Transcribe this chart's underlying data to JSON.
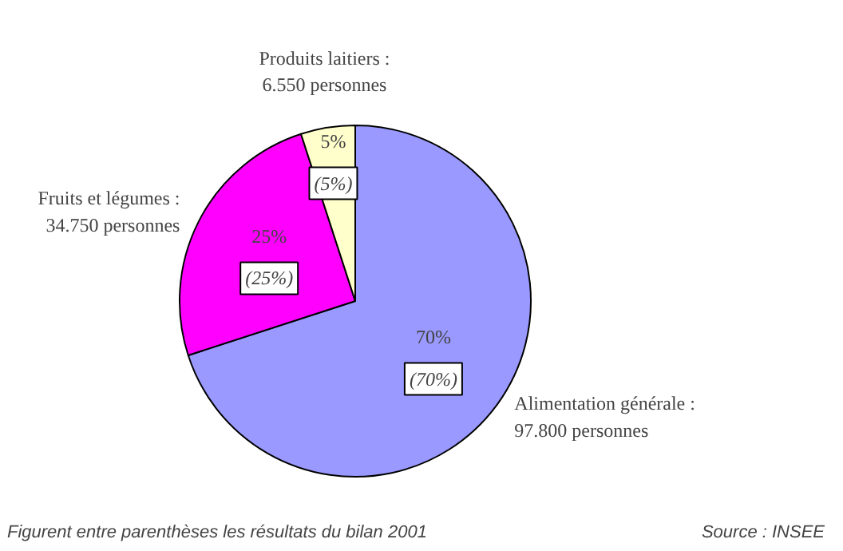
{
  "chart_data": {
    "type": "pie",
    "categories": [
      "Alimentation générale :\n97.800 personnes",
      "Fruits et légumes :\n34.750 personnes",
      "Produits laitiers :\n6.550 personnes"
    ],
    "values": [
      70,
      25,
      5
    ],
    "colors": [
      "#9999ff",
      "#ff00ff",
      "#ffffcc"
    ],
    "value_labels": [
      "70%\n(70%)",
      "25%\n(25%)",
      "5%\n(5%)"
    ],
    "annotations": [
      "Figurent entre parenthèses les résultats du bilan 2001",
      "Source : INSEE"
    ]
  }
}
